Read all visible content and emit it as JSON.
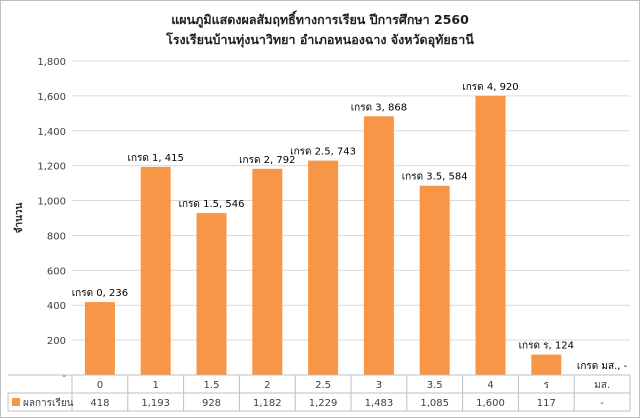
{
  "chart_data": {
    "type": "bar",
    "title": "แผนภูมิแสดงผลสัมฤทธิ์ทางการเรียน ปีการศึกษา 2560",
    "subtitle": "โรงเรียนบ้านทุ่งนาวิทยา อำเภอหนองฉาง จังหวัดอุทัยธานี",
    "ylabel": "จำนวน",
    "xlabel": "",
    "ylim": [
      0,
      1800
    ],
    "yticks": [
      "-",
      "200",
      "400",
      "600",
      "800",
      "1,000",
      "1,200",
      "1,400",
      "1,600",
      "1,800"
    ],
    "categories": [
      "0",
      "1",
      "1.5",
      "2",
      "2.5",
      "3",
      "3.5",
      "4",
      "ร",
      "มส."
    ],
    "series": [
      {
        "name": "ผลการเรียน",
        "color": "#F79646",
        "values": [
          418,
          1193,
          928,
          1182,
          1229,
          1483,
          1085,
          1600,
          117,
          0
        ],
        "value_labels": [
          "418",
          "1,193",
          "928",
          "1,182",
          "1,229",
          "1,483",
          "1,085",
          "1,600",
          "117",
          "-"
        ]
      }
    ],
    "annotations": [
      "เกรด 0,  236",
      "เกรด 1,  415",
      "เกรด 1.5,  546",
      "เกรด 2,  792",
      "เกรด 2.5,  743",
      "เกรด 3,  868",
      "เกรด 3.5,  584",
      "เกรด 4,  920",
      "เกรด ร,  124",
      "เกรด มส.,  -"
    ],
    "grid": true,
    "legend": "data-table-left"
  }
}
